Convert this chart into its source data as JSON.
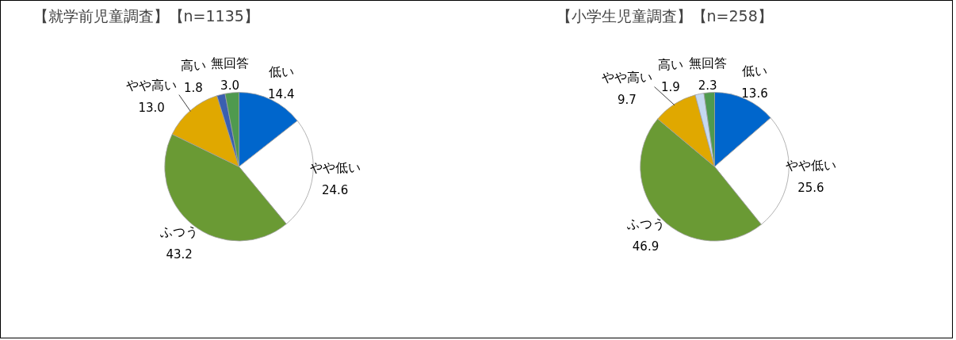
{
  "chart_data": [
    {
      "type": "pie",
      "title": "【就学前児童調査】【n=1135】",
      "categories": [
        "低い",
        "やや低い",
        "ふつう",
        "やや高い",
        "高い",
        "無回答"
      ],
      "values": [
        14.4,
        24.6,
        43.2,
        13.0,
        1.8,
        3.0
      ],
      "colors": [
        "#0066cc",
        "#ffffff",
        "#6a9a34",
        "#e0a800",
        "#3a5fb0",
        "#4f9a4f"
      ],
      "value_labels": [
        "14.4",
        "24.6",
        "43.2",
        "13.0",
        "1.8",
        "3.0"
      ],
      "legend": false
    },
    {
      "type": "pie",
      "title": "【小学生児童調査】【n=258】",
      "categories": [
        "低い",
        "やや低い",
        "ふつう",
        "やや高い",
        "高い",
        "無回答"
      ],
      "values": [
        13.6,
        25.6,
        46.9,
        9.7,
        1.9,
        2.3
      ],
      "colors": [
        "#0066cc",
        "#ffffff",
        "#6a9a34",
        "#e0a800",
        "#c5d9f1",
        "#4f9a4f"
      ],
      "value_labels": [
        "13.6",
        "25.6",
        "46.9",
        "9.7",
        "1.9",
        "2.3"
      ],
      "legend": false
    }
  ]
}
